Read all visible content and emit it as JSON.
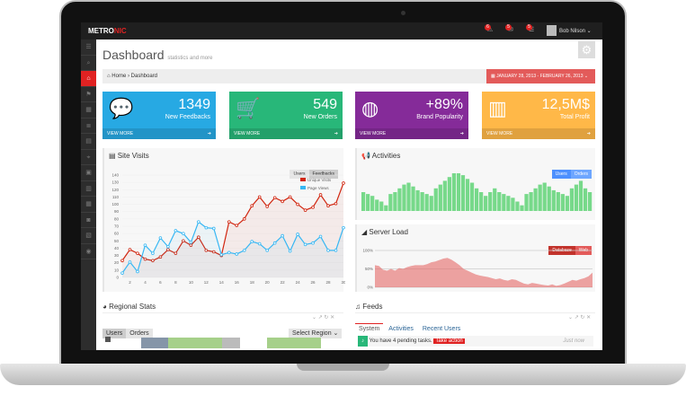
{
  "topbar": {
    "logo_a": "METRO",
    "logo_b": "NIC",
    "notifications": [
      "6",
      "5",
      "5"
    ],
    "user": "Bob Nilson"
  },
  "sidebar": {
    "icons": [
      "menu-icon",
      "search-icon",
      "home-icon",
      "bookmark-icon",
      "table-icon",
      "list-icon",
      "grid-icon",
      "map-pin-icon",
      "image-icon",
      "chart-icon",
      "table2-icon",
      "camera-icon",
      "calendar-icon",
      "user-icon"
    ]
  },
  "page": {
    "title": "Dashboard",
    "subtitle": "statistics and more",
    "breadcrumb": [
      "Home",
      "Dashboard"
    ],
    "date_range": "JANUARY 28, 2013 - FEBRUARY 26, 2013"
  },
  "tiles": [
    {
      "value": "1349",
      "label": "New Feedbacks",
      "more": "VIEW MORE",
      "color": "#27a9e3",
      "icon": "comments-icon"
    },
    {
      "value": "549",
      "label": "New Orders",
      "more": "VIEW MORE",
      "color": "#28b779",
      "icon": "cart-icon"
    },
    {
      "value": "+89%",
      "label": "Brand Popularity",
      "more": "VIEW MORE",
      "color": "#852b99",
      "icon": "globe-icon"
    },
    {
      "value": "12,5M$",
      "label": "Total Profit",
      "more": "VIEW MORE",
      "color": "#ffb848",
      "icon": "bar-chart-icon"
    }
  ],
  "site_visits": {
    "title": "Site Visits",
    "buttons": [
      "Users",
      "Feedbacks"
    ]
  },
  "activities": {
    "title": "Activities",
    "buttons": [
      "Users",
      "Orders"
    ]
  },
  "server_load": {
    "title": "Server Load",
    "buttons": [
      "Database",
      "Web"
    ]
  },
  "regional": {
    "title": "Regional Stats",
    "buttons": [
      "Users",
      "Orders"
    ],
    "select": "Select Region"
  },
  "feeds": {
    "title": "Feeds",
    "tabs": [
      "System",
      "Activities",
      "Recent Users"
    ],
    "item": "You have 4 pending tasks.",
    "action": "Take action",
    "time": "Just now"
  },
  "chart_data": [
    {
      "type": "line",
      "title": "Site Visits",
      "ylim": [
        0,
        140
      ],
      "yticks": [
        0,
        10,
        20,
        30,
        40,
        50,
        60,
        70,
        80,
        90,
        100,
        110,
        120,
        130,
        140
      ],
      "xticks": [
        2,
        4,
        6,
        8,
        10,
        12,
        14,
        16,
        18,
        20,
        22,
        24,
        26,
        28,
        30
      ],
      "x": [
        1,
        2,
        3,
        4,
        5,
        6,
        7,
        8,
        9,
        10,
        11,
        12,
        13,
        14,
        15,
        16,
        17,
        18,
        19,
        20,
        21,
        22,
        23,
        24,
        25,
        26,
        27,
        28,
        29,
        30
      ],
      "series": [
        {
          "name": "Unique Visits",
          "color": "#d12610",
          "values": [
            23,
            38,
            33,
            25,
            23,
            28,
            38,
            33,
            50,
            44,
            55,
            37,
            35,
            30,
            76,
            71,
            80,
            98,
            110,
            97,
            109,
            104,
            110,
            100,
            92,
            96,
            113,
            98,
            101,
            129
          ]
        },
        {
          "name": "Page Views",
          "color": "#37b7f3",
          "values": [
            6,
            21,
            8,
            44,
            33,
            54,
            42,
            64,
            60,
            48,
            76,
            68,
            67,
            31,
            34,
            32,
            37,
            49,
            46,
            37,
            47,
            57,
            36,
            59,
            45,
            47,
            56,
            37,
            37,
            68
          ]
        }
      ]
    },
    {
      "type": "bar",
      "title": "Activities",
      "color": "#77d98a",
      "values": [
        10,
        9,
        8,
        6,
        5,
        3,
        9,
        10,
        12,
        14,
        15,
        13,
        11,
        10,
        9,
        8,
        12,
        14,
        16,
        18,
        20,
        20,
        19,
        17,
        15,
        12,
        10,
        8,
        10,
        12,
        10,
        9,
        8,
        7,
        5,
        3,
        9,
        10,
        12,
        14,
        15,
        13,
        11,
        10,
        9,
        8,
        12,
        14,
        16,
        12,
        10
      ]
    },
    {
      "type": "area",
      "title": "Server Load",
      "ylim": [
        0,
        100
      ],
      "yticks": [
        "0%",
        "50%",
        "100%"
      ],
      "color": "#e35b5a",
      "values": [
        60,
        58,
        48,
        45,
        50,
        45,
        52,
        50,
        55,
        58,
        60,
        60,
        60,
        63,
        68,
        70,
        74,
        78,
        80,
        75,
        68,
        60,
        50,
        45,
        40,
        35,
        32,
        30,
        28,
        25,
        22,
        24,
        20,
        18,
        22,
        20,
        15,
        10,
        8,
        12,
        10,
        8,
        6,
        5,
        8,
        4,
        6,
        10,
        15,
        20,
        18,
        22,
        25,
        30,
        40
      ]
    }
  ]
}
